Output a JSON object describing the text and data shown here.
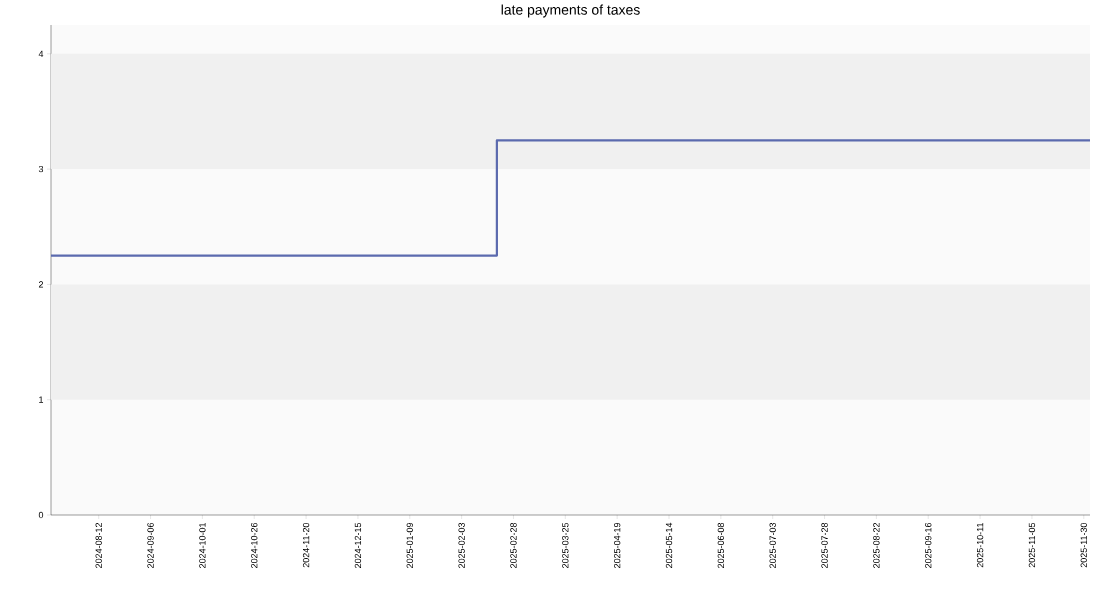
{
  "chart_data": {
    "type": "step",
    "title": "late payments of taxes",
    "x": [
      "2024-07-20",
      "2025-02-20",
      "2025-12-03"
    ],
    "series": [
      {
        "color": "#5b6aae",
        "values": [
          2.25,
          3.25,
          3.25
        ]
      }
    ],
    "xlim": [
      "2024-07-20",
      "2025-12-03"
    ],
    "xticks": [
      "2024-08-12",
      "2024-09-06",
      "2024-10-01",
      "2024-10-26",
      "2024-11-20",
      "2024-12-15",
      "2025-01-09",
      "2025-02-03",
      "2025-02-28",
      "2025-03-25",
      "2025-04-19",
      "2025-05-14",
      "2025-06-08",
      "2025-07-03",
      "2025-07-28",
      "2025-08-22",
      "2025-09-16",
      "2025-10-11",
      "2025-11-05",
      "2025-11-30"
    ],
    "ylim": [
      0,
      4.25
    ],
    "yticks": [
      0,
      1,
      2,
      3,
      4
    ],
    "bands": [
      {
        "axis": "y",
        "from": 1,
        "to": 2,
        "color": "#f0f0f0"
      },
      {
        "axis": "y",
        "from": 3,
        "to": 4,
        "color": "#f0f0f0"
      }
    ]
  }
}
